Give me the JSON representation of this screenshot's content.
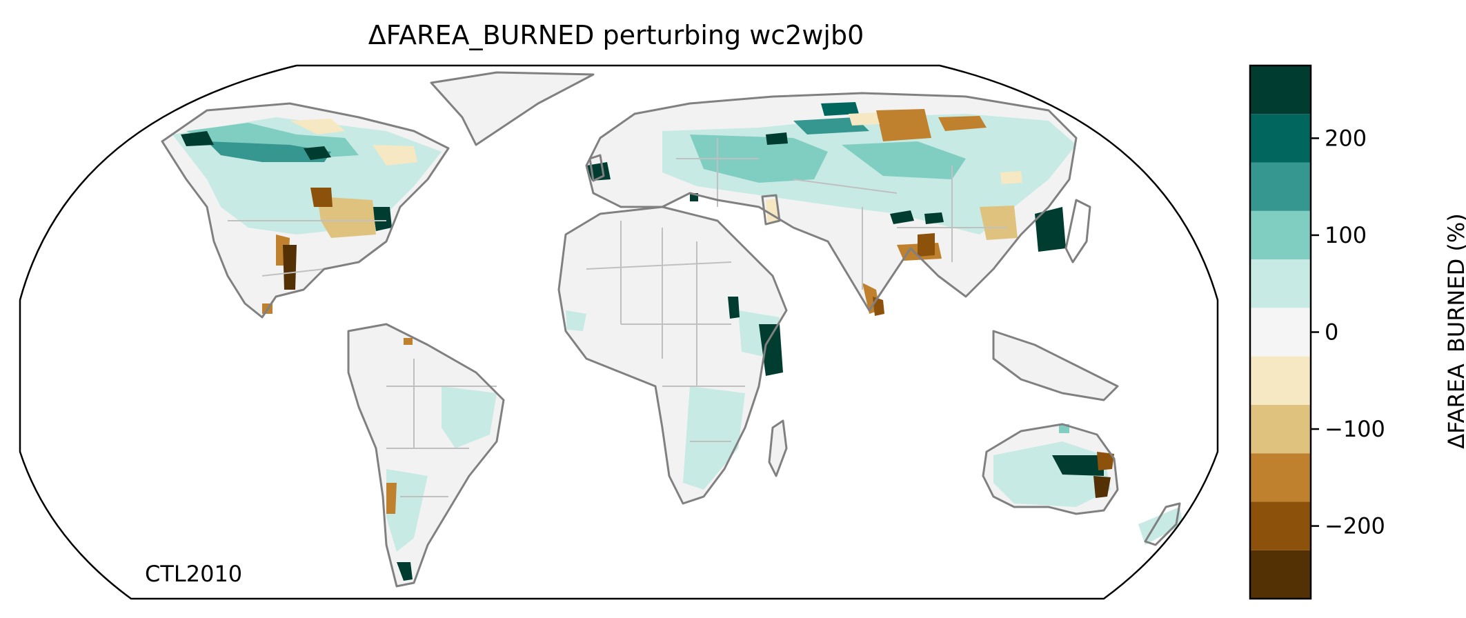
{
  "title": "ΔFAREA_BURNED perturbing wc2wjb0",
  "panel_label": "CTL2010",
  "colorbar": {
    "label": "ΔFAREA_BURNED (%)",
    "range": [
      -275,
      275
    ],
    "bounds": [
      -275,
      -225,
      -175,
      -125,
      -75,
      -25,
      25,
      75,
      125,
      175,
      225,
      275
    ],
    "colors": [
      "#543005",
      "#8c510a",
      "#bf812d",
      "#dfc27d",
      "#f6e8c3",
      "#f5f5f5",
      "#c7eae5",
      "#80cdc1",
      "#35978f",
      "#01665e",
      "#003c30"
    ],
    "ticks": [
      -200,
      -100,
      0,
      100,
      200
    ],
    "tick_labels": [
      "−200",
      "−100",
      "0",
      "100",
      "200"
    ]
  },
  "map": {
    "projection": "robinson",
    "ocean_color": "#ffffff",
    "coastline_color": "#808080",
    "border_color": "#c0c0c0"
  }
}
